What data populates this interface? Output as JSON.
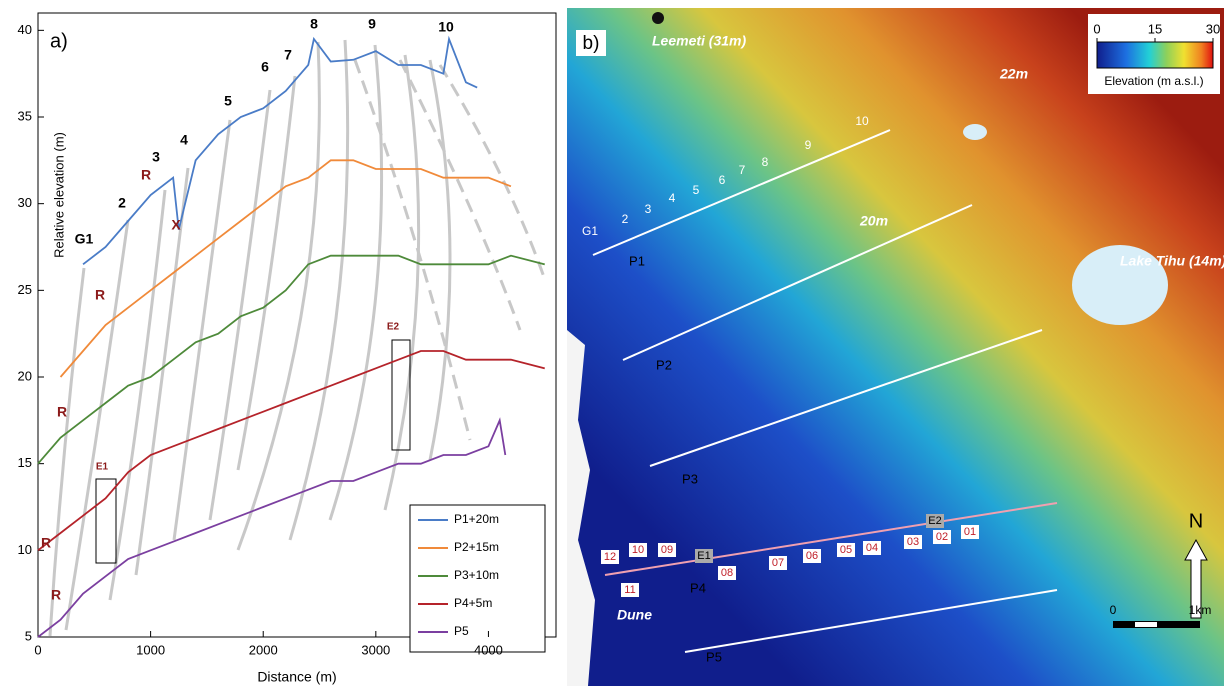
{
  "chart_data": {
    "type": "line",
    "panel_label": "a)",
    "x_label": "Distance (m)",
    "y_label": "Relative elevation (m)",
    "xlim": [
      0,
      4600
    ],
    "xticks": [
      0,
      1000,
      2000,
      3000,
      4000
    ],
    "ylim": [
      5,
      41
    ],
    "yticks": [
      5,
      10,
      15,
      20,
      25,
      30,
      35,
      40
    ],
    "series": [
      {
        "name": "P1+20m",
        "color": "#4a7cc7",
        "x": [
          400,
          600,
          800,
          1000,
          1200,
          1250,
          1400,
          1600,
          1800,
          2000,
          2200,
          2400,
          2450,
          2600,
          2800,
          3000,
          3200,
          3400,
          3600,
          3650,
          3800,
          3900
        ],
        "values": [
          26.5,
          27.5,
          29,
          30.5,
          31.5,
          28.5,
          32.5,
          34,
          35,
          35.5,
          36.5,
          38,
          39.5,
          38.2,
          38.3,
          38.8,
          38,
          38,
          37.5,
          39.5,
          37,
          36.7
        ]
      },
      {
        "name": "P2+15m",
        "color": "#f08a3a",
        "x": [
          200,
          400,
          600,
          800,
          1000,
          1200,
          1400,
          1600,
          1800,
          2000,
          2200,
          2400,
          2600,
          2800,
          3000,
          3200,
          3400,
          3600,
          3800,
          4000,
          4200
        ],
        "values": [
          20,
          21.5,
          23,
          24,
          25,
          26,
          27,
          28,
          29,
          30,
          31,
          31.5,
          32.5,
          32.5,
          32,
          32,
          32,
          31.5,
          31.5,
          31.5,
          31
        ]
      },
      {
        "name": "P3+10m",
        "color": "#4e8a3a",
        "x": [
          0,
          200,
          400,
          600,
          800,
          1000,
          1200,
          1400,
          1600,
          1800,
          2000,
          2200,
          2400,
          2600,
          2800,
          3000,
          3200,
          3400,
          3600,
          3800,
          4000,
          4200,
          4500
        ],
        "values": [
          15,
          16.5,
          17.5,
          18.5,
          19.5,
          20,
          21,
          22,
          22.5,
          23.5,
          24,
          25,
          26.5,
          27,
          27,
          27,
          27,
          26.5,
          26.5,
          26.5,
          26.5,
          27,
          26.5
        ]
      },
      {
        "name": "P4+5m",
        "color": "#b5232a",
        "x": [
          0,
          200,
          400,
          600,
          800,
          1000,
          1200,
          1400,
          1600,
          1800,
          2000,
          2200,
          2400,
          2600,
          2800,
          3000,
          3200,
          3400,
          3600,
          3800,
          4000,
          4200,
          4500
        ],
        "values": [
          10,
          11,
          12,
          13,
          14.5,
          15.5,
          16,
          16.5,
          17,
          17.5,
          18,
          18.5,
          19,
          19.5,
          20,
          20.5,
          21,
          21.5,
          21.5,
          21,
          21,
          21,
          20.5
        ]
      },
      {
        "name": "P5",
        "color": "#7b3fa0",
        "x": [
          0,
          200,
          400,
          600,
          800,
          1000,
          1200,
          1400,
          1600,
          1800,
          2000,
          2200,
          2400,
          2600,
          2800,
          3000,
          3200,
          3400,
          3600,
          3800,
          4000,
          4100,
          4150
        ],
        "values": [
          5,
          6,
          7.5,
          8.5,
          9.5,
          10,
          10.5,
          11,
          11.5,
          12,
          12.5,
          13,
          13.5,
          14,
          14,
          14.5,
          15,
          15,
          15.5,
          15.5,
          16,
          17.5,
          15.5
        ]
      }
    ],
    "annotations": [
      "G1",
      "2",
      "3",
      "4",
      "R",
      "X",
      "5",
      "6",
      "7",
      "8",
      "9",
      "10",
      "R",
      "R",
      "R",
      "R",
      "E1",
      "E2"
    ]
  },
  "map": {
    "panel_label": "b)",
    "places": [
      "Leemeti (31m)",
      "22m",
      "20m",
      "Lake Tihu (14m)",
      "Dune"
    ],
    "profiles": [
      "P1",
      "P2",
      "P3",
      "P4",
      "P5"
    ],
    "ridges": [
      "G1",
      "2",
      "3",
      "4",
      "5",
      "6",
      "7",
      "8",
      "9",
      "10"
    ],
    "samples": [
      "01",
      "02",
      "03",
      "04",
      "05",
      "06",
      "07",
      "08",
      "09",
      "10",
      "11",
      "12"
    ],
    "boxes": [
      "E1",
      "E2"
    ],
    "colorbar": {
      "ticks": [
        0,
        15,
        30
      ],
      "label": "Elevation (m a.s.l.)"
    },
    "north": "N",
    "scale": [
      "0",
      "1km"
    ]
  }
}
